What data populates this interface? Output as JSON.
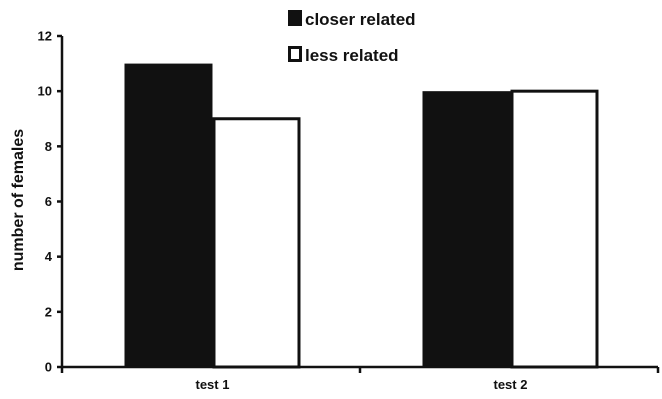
{
  "chart_data": {
    "type": "bar",
    "title": "",
    "xlabel": "",
    "ylabel": "number of females",
    "categories": [
      "test 1",
      "test 2"
    ],
    "series": [
      {
        "name": "closer related",
        "values": [
          11,
          10
        ],
        "color": "#111111",
        "fill": "solid"
      },
      {
        "name": "less related",
        "values": [
          9,
          10
        ],
        "color": "#ffffff",
        "fill": "outline"
      }
    ],
    "ylim": [
      0,
      12
    ],
    "yticks": [
      0,
      2,
      4,
      6,
      8,
      10,
      12
    ],
    "grid": false,
    "legend_position": "top-center"
  }
}
